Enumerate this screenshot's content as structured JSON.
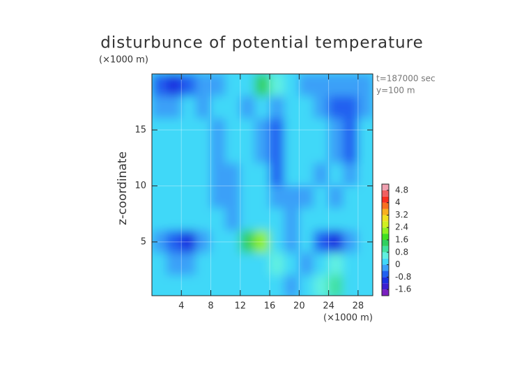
{
  "chart_data": {
    "type": "heatmap",
    "title": "disturbunce of potential temperature",
    "y_unit": "(×1000 m)",
    "x_unit": "(×1000 m)",
    "ylabel": "z-coordinate",
    "annotations": [
      "t=187000 sec",
      "y=100 m"
    ],
    "xlim": [
      0,
      30
    ],
    "xticks": [
      4,
      8,
      12,
      16,
      20,
      24,
      28
    ],
    "ylim": [
      0.2,
      20
    ],
    "yticks": [
      5,
      10,
      15
    ],
    "x": [
      1,
      3,
      5,
      7,
      9,
      11,
      13,
      15,
      17,
      19,
      21,
      23,
      25,
      27,
      29
    ],
    "z": [
      19,
      17,
      15,
      13,
      11,
      9,
      7,
      5,
      3,
      1
    ],
    "values": [
      [
        -0.6,
        -0.8,
        -0.6,
        -0.4,
        -0.2,
        0,
        0.4,
        1.2,
        0.8,
        0,
        -0.4,
        -0.4,
        -0.2,
        -0.4,
        -0.4
      ],
      [
        -0.2,
        -0.2,
        0,
        -0.2,
        0.2,
        0,
        -0.4,
        0.2,
        -0.4,
        0.2,
        0.2,
        -0.4,
        -0.6,
        -0.6,
        -0.2
      ],
      [
        0,
        0.2,
        0.2,
        0,
        -0.2,
        0.2,
        0.2,
        -0.2,
        -0.6,
        0.2,
        0.2,
        0,
        -0.4,
        -0.6,
        0
      ],
      [
        0.2,
        0.2,
        0,
        0.2,
        -0.2,
        0,
        0.2,
        -0.2,
        -0.6,
        0,
        0.2,
        0,
        -0.2,
        -0.6,
        0
      ],
      [
        0,
        0.2,
        0.2,
        0.4,
        -0.2,
        -0.2,
        0.2,
        0.2,
        -0.6,
        0,
        0,
        -0.2,
        0,
        -0.4,
        0.2
      ],
      [
        0.2,
        0,
        0.2,
        0.2,
        -0.4,
        -0.4,
        0,
        0.2,
        -0.4,
        -0.2,
        -0.4,
        0,
        -0.2,
        0,
        0.2
      ],
      [
        0,
        0,
        0.2,
        0.2,
        0,
        -0.4,
        0,
        0.4,
        0,
        -0.4,
        0,
        0.2,
        0,
        0.2,
        0
      ],
      [
        -0.4,
        -0.6,
        -0.8,
        -0.4,
        0,
        0.4,
        1.2,
        2.0,
        0.2,
        -0.2,
        0,
        -0.6,
        -0.8,
        -0.4,
        0
      ],
      [
        0,
        -0.2,
        -0.4,
        0,
        0.2,
        0.4,
        0,
        0.2,
        0.8,
        0.4,
        -0.2,
        0.4,
        0.8,
        0.4,
        0
      ],
      [
        0,
        0.2,
        0.2,
        0,
        0.2,
        0,
        0.4,
        0.2,
        0.4,
        -0.4,
        0.2,
        0.8,
        1.0,
        0.4,
        0.2
      ]
    ],
    "colorbar_lim": [
      -2,
      5.2
    ],
    "colorbar_ticks": [
      4.8,
      4,
      3.2,
      2.4,
      1.6,
      0.8,
      0,
      -0.8,
      -1.6
    ],
    "colors": [
      "#7a1fc0",
      "#3a1fd0",
      "#1a30e0",
      "#2060f0",
      "#3aa0f8",
      "#40d8f8",
      "#60f0e0",
      "#40e0a0",
      "#30d060",
      "#40e020",
      "#90f020",
      "#d0f020",
      "#f0e020",
      "#f8b020",
      "#f87020",
      "#f83020",
      "#f06060",
      "#f0a0b0"
    ]
  }
}
